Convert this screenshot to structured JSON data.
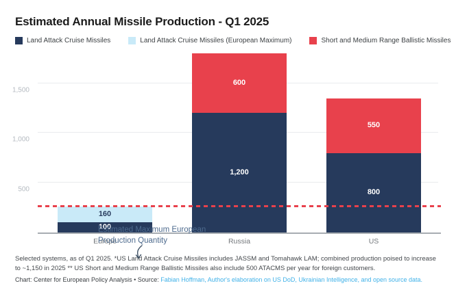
{
  "title": "Estimated Annual Missile Production - Q1 2025",
  "legend": {
    "items": [
      {
        "label": "Land Attack Cruise Missiles",
        "color": "#263a5c"
      },
      {
        "label": "Land Attack Cruise Missiles (European Maximum)",
        "color": "#c9eaf8"
      },
      {
        "label": "Short and Medium Range Ballistic Missiles",
        "color": "#e8414c"
      }
    ]
  },
  "chart_data": {
    "type": "bar",
    "stacked": true,
    "title": "Estimated Annual Missile Production - Q1 2025",
    "categories": [
      "Europe",
      "Russia",
      "US"
    ],
    "series": [
      {
        "name": "Land Attack Cruise Missiles",
        "color": "#263a5c",
        "label_color": "#ffffff",
        "values": [
          100,
          1200,
          800
        ]
      },
      {
        "name": "Land Attack Cruise Missiles (European Maximum)",
        "color": "#c9eaf8",
        "label_color": "#263a5c",
        "values": [
          160,
          0,
          0
        ]
      },
      {
        "name": "Short and Medium Range Ballistic Missiles",
        "color": "#e8414c",
        "label_color": "#ffffff",
        "values": [
          0,
          600,
          550
        ]
      }
    ],
    "xlabel": "",
    "ylabel": "",
    "ylim": [
      0,
      1800
    ],
    "y_ticks": [
      500,
      1000,
      1500
    ],
    "grid": true,
    "legend_position": "top",
    "reference_line": {
      "value": 260,
      "color": "#e8414c",
      "style": "dashed"
    }
  },
  "annotation": {
    "line1": "Estimated Maximum European",
    "line2": "Production Quantity"
  },
  "footer": {
    "note": "Selected systems, as of Q1 2025. *US Land Attack Cruise Missiles includes JASSM and Tomahawk LAM; combined production poised to increase to ~1,150 in 2025 ** US Short and Medium Range Ballistic Missiles also include 500 ATACMS per year for foreign customers.",
    "credit_prefix": "Chart: Center for European Policy Analysis • Source: ",
    "credit_link": "Fabian Hoffman, Author's elaboration on US DoD, Ukrainian Intelligence, and open source data."
  },
  "colors": {
    "navy": "#263a5c",
    "light_blue": "#c9eaf8",
    "red": "#e8414c",
    "grid": "#e9ebed",
    "axis": "#a7acb1",
    "tick_text": "#b4bac0",
    "annotation_text": "#4e6b8e",
    "link": "#3fb1e8"
  }
}
